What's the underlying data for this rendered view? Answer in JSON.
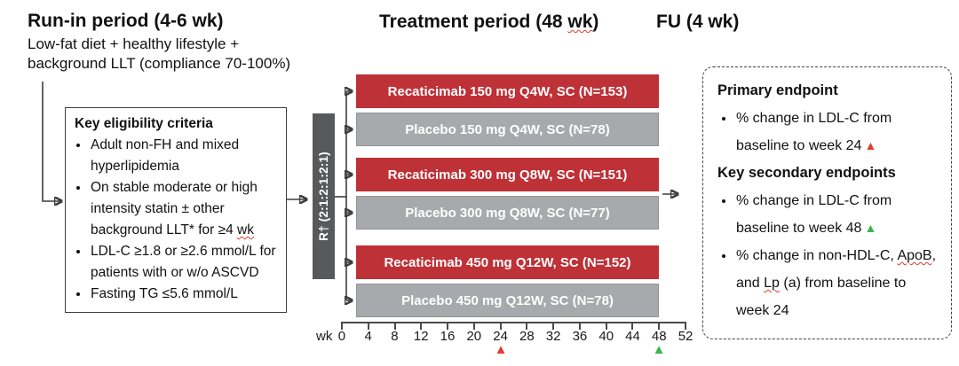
{
  "meta": {
    "squiggle_words": [
      "wk",
      "ApoB",
      "Lp"
    ],
    "icons": {
      "triangle": "▲"
    },
    "colors": {
      "active_arm_red": "#be3137",
      "placebo_arm_gray": "#a7a9ac",
      "randomization_bar_gray": "#58595b",
      "marker_red": "#e8392e",
      "marker_green": "#39b54a"
    }
  },
  "headings": {
    "run_in": "Run-in period (4-6 wk)",
    "run_in_sub1": "Low-fat diet + healthy lifestyle +",
    "run_in_sub2": "background LLT (compliance 70-100%)",
    "treatment": "Treatment period (48 wk)",
    "fu": "FU (4 wk)"
  },
  "eligibility": {
    "title": "Key eligibility criteria",
    "items": [
      "Adult non-FH and mixed hyperlipidemia",
      "On stable moderate or high intensity statin ± other background LLT* for ≥4 wk",
      "LDL-C ≥1.8 or ≥2.6 mmol/L for patients with or w/o ASCVD",
      "Fasting TG ≤5.6 mmol/L"
    ]
  },
  "randomization": {
    "label": "R† (2:1:2:1:2:1)"
  },
  "arms": [
    {
      "label": "Recaticimab 150 mg Q4W, SC (N=153)",
      "type": "active"
    },
    {
      "label": "Placebo 150 mg Q4W, SC (N=78)",
      "type": "placebo"
    },
    {
      "label": "Recaticimab 300 mg Q8W, SC (N=151)",
      "type": "active"
    },
    {
      "label": "Placebo 300 mg Q8W, SC (N=77)",
      "type": "placebo"
    },
    {
      "label": "Recaticimab 450 mg Q12W, SC (N=152)",
      "type": "active"
    },
    {
      "label": "Placebo 450 mg Q12W, SC (N=78)",
      "type": "placebo"
    }
  ],
  "axis": {
    "unit_label": "wk",
    "ticks": [
      "0",
      "4",
      "8",
      "12",
      "16",
      "20",
      "24",
      "28",
      "32",
      "36",
      "40",
      "44",
      "48",
      "52"
    ],
    "markers": [
      {
        "week": 24,
        "color": "red"
      },
      {
        "week": 48,
        "color": "green"
      }
    ]
  },
  "endpoints": {
    "primary_title": "Primary endpoint",
    "primary_items": [
      {
        "text": "% change in LDL-C from baseline to week 24",
        "marker": "red"
      }
    ],
    "secondary_title": "Key secondary endpoints",
    "secondary_items": [
      {
        "text": "% change in LDL-C from baseline to week 48",
        "marker": "green"
      },
      {
        "text": "% change in non-HDL-C, ApoB, and Lp (a) from baseline to week 24",
        "marker": ""
      }
    ]
  }
}
